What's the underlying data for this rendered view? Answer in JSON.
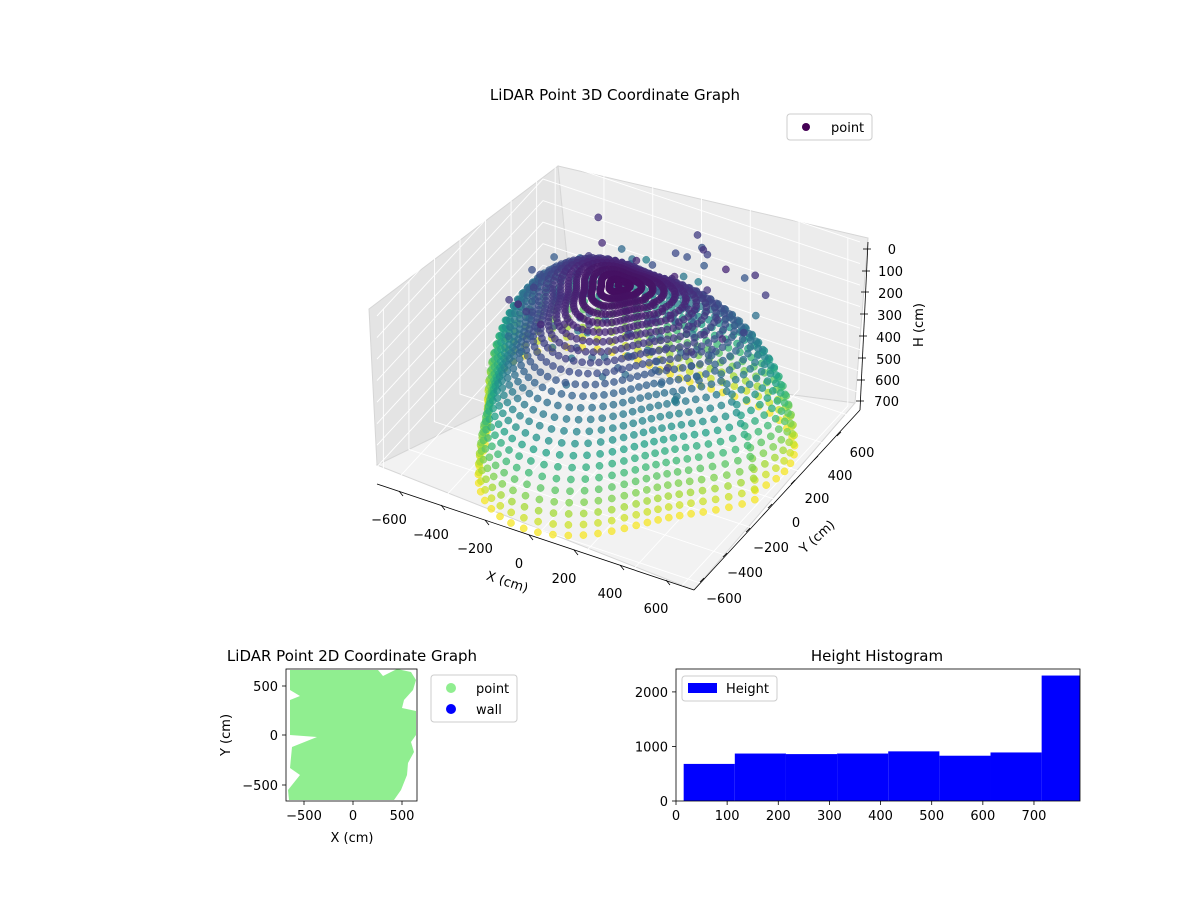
{
  "chart_data": [
    {
      "type": "scatter",
      "projection": "3d",
      "title": "LiDAR Point 3D Coordinate Graph",
      "xlabel": "X (cm)",
      "ylabel": "Y (cm)",
      "zlabel": "H (cm)",
      "xlim": [
        -650,
        650
      ],
      "ylim": [
        -650,
        650
      ],
      "zlim": [
        0,
        780
      ],
      "z_axis_inverted": true,
      "xticks": [
        "−600",
        "−400",
        "−200",
        "0",
        "200",
        "400",
        "600"
      ],
      "yticks": [
        "−600",
        "−400",
        "−200",
        "0",
        "200",
        "400",
        "600"
      ],
      "zticks": [
        "0",
        "100",
        "200",
        "300",
        "400",
        "500",
        "600",
        "700"
      ],
      "colormap": "viridis",
      "legend": {
        "placement": "top-right",
        "entries": [
          "point"
        ]
      },
      "series": [
        {
          "name": "point",
          "color": "#440154",
          "description": "arcs of lidar returns sweeping from ceiling (H≈0, dark purple) down to floor (H≈780, yellow)"
        }
      ],
      "grid": true
    },
    {
      "type": "scatter",
      "title": "LiDAR Point 2D Coordinate Graph",
      "xlabel": "X (cm)",
      "ylabel": "Y (cm)",
      "xlim": [
        -680,
        660
      ],
      "ylim": [
        -680,
        680
      ],
      "xticks": [
        "−500",
        "0",
        "500"
      ],
      "yticks": [
        "−500",
        "0",
        "500"
      ],
      "legend": {
        "placement": "outside-right",
        "entries": [
          "point",
          "wall"
        ]
      },
      "series": [
        {
          "name": "point",
          "color": "#90ee90"
        },
        {
          "name": "wall",
          "color": "#0000ff"
        }
      ],
      "grid": false
    },
    {
      "type": "bar",
      "subtype": "histogram",
      "title": "Height Histogram",
      "xlabel": "",
      "ylabel": "",
      "xlim": [
        0,
        790
      ],
      "ylim": [
        0,
        2420
      ],
      "xticks": [
        "0",
        "100",
        "200",
        "300",
        "400",
        "500",
        "600",
        "700"
      ],
      "yticks": [
        "0",
        "1000",
        "2000"
      ],
      "bins": [
        {
          "start": 15,
          "end": 115,
          "value": 680
        },
        {
          "start": 115,
          "end": 215,
          "value": 870
        },
        {
          "start": 215,
          "end": 315,
          "value": 860
        },
        {
          "start": 315,
          "end": 415,
          "value": 870
        },
        {
          "start": 415,
          "end": 515,
          "value": 910
        },
        {
          "start": 515,
          "end": 615,
          "value": 830
        },
        {
          "start": 615,
          "end": 715,
          "value": 890
        },
        {
          "start": 715,
          "end": 790,
          "value": 2300
        }
      ],
      "legend": {
        "placement": "top-left",
        "entries": [
          "Height"
        ]
      },
      "series": [
        {
          "name": "Height",
          "color": "#0000ff"
        }
      ],
      "grid": false
    }
  ]
}
